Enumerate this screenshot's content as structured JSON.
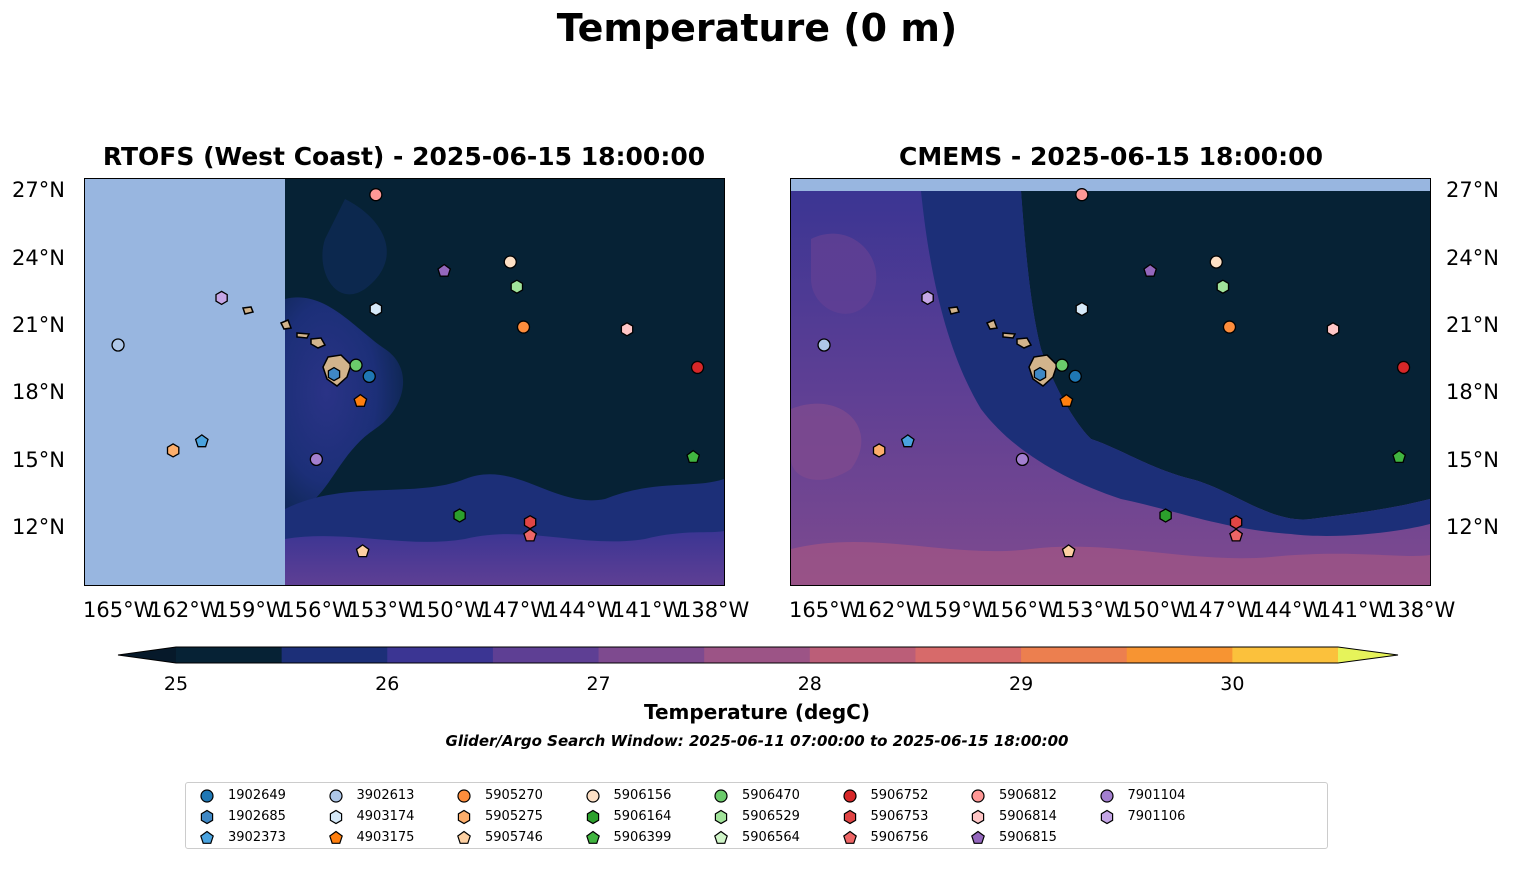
{
  "figure": {
    "title": "Temperature (0 m)",
    "panels": [
      {
        "title": "RTOFS (West Coast) - 2025-06-15 18:00:00"
      },
      {
        "title": "CMEMS - 2025-06-15 18:00:00"
      }
    ],
    "lat_labels": [
      "27°N",
      "24°N",
      "21°N",
      "18°N",
      "15°N",
      "12°N"
    ],
    "lon_labels": [
      "165°W",
      "162°W",
      "159°W",
      "156°W",
      "153°W",
      "150°W",
      "147°W",
      "144°W",
      "141°W",
      "138°W"
    ],
    "colorbar": {
      "label": "Temperature (degC)",
      "ticks": [
        "25",
        "26",
        "27",
        "28",
        "29",
        "30"
      ],
      "colors": [
        "#062235",
        "#1c2f78",
        "#3b3593",
        "#5e3f94",
        "#7e4a8f",
        "#9c5486",
        "#bb5e78",
        "#d76a6a",
        "#ec7f4f",
        "#f79432",
        "#fbc13c"
      ],
      "under_color": "#06192a",
      "over_color": "#e6f35a"
    },
    "search_window": "Glider/Argo Search Window: 2025-06-11 07:00:00 to 2025-06-15 18:00:00"
  },
  "legend": [
    {
      "id": "1902649",
      "marker": "circle",
      "color": "#1f77b4"
    },
    {
      "id": "1902685",
      "marker": "hexagon",
      "color": "#3f88c5"
    },
    {
      "id": "3902373",
      "marker": "pentagon",
      "color": "#4aa3df"
    },
    {
      "id": "3902613",
      "marker": "circle",
      "color": "#aec7e8"
    },
    {
      "id": "4903174",
      "marker": "hexagon",
      "color": "#d6e9f8"
    },
    {
      "id": "4903175",
      "marker": "pentagon",
      "color": "#ff7f0e"
    },
    {
      "id": "5905270",
      "marker": "circle",
      "color": "#fd8d3c"
    },
    {
      "id": "5905275",
      "marker": "hexagon",
      "color": "#fdae6b"
    },
    {
      "id": "5905746",
      "marker": "pentagon",
      "color": "#fdd0a2"
    },
    {
      "id": "5906156",
      "marker": "circle",
      "color": "#fde0c5"
    },
    {
      "id": "5906164",
      "marker": "hexagon",
      "color": "#2ca02c"
    },
    {
      "id": "5906399",
      "marker": "pentagon",
      "color": "#41b540"
    },
    {
      "id": "5906470",
      "marker": "circle",
      "color": "#6bcb6b"
    },
    {
      "id": "5906529",
      "marker": "hexagon",
      "color": "#a1e39a"
    },
    {
      "id": "5906564",
      "marker": "pentagon",
      "color": "#d0f5c8"
    },
    {
      "id": "5906752",
      "marker": "circle",
      "color": "#d62728"
    },
    {
      "id": "5906753",
      "marker": "hexagon",
      "color": "#e04545"
    },
    {
      "id": "5906756",
      "marker": "pentagon",
      "color": "#ee6666"
    },
    {
      "id": "5906812",
      "marker": "circle",
      "color": "#ff9896"
    },
    {
      "id": "5906814",
      "marker": "hexagon",
      "color": "#ffc6c6"
    },
    {
      "id": "5906815",
      "marker": "pentagon",
      "color": "#9467bd"
    },
    {
      "id": "7901104",
      "marker": "circle",
      "color": "#a37fcf"
    },
    {
      "id": "7901106",
      "marker": "hexagon",
      "color": "#c5a6e6"
    }
  ],
  "markers": [
    {
      "id": "5906812",
      "lon": -153.3,
      "lat": 26.9
    },
    {
      "id": "5906815",
      "lon": -150.2,
      "lat": 23.5
    },
    {
      "id": "5906156",
      "lon": -147.2,
      "lat": 23.9
    },
    {
      "id": "5906529",
      "lon": -146.9,
      "lat": 22.8
    },
    {
      "id": "4903174",
      "lon": -153.3,
      "lat": 21.8
    },
    {
      "id": "5905270",
      "lon": -146.6,
      "lat": 21.0
    },
    {
      "id": "5906814",
      "lon": -141.9,
      "lat": 20.9
    },
    {
      "id": "7901106",
      "lon": -160.3,
      "lat": 22.3
    },
    {
      "id": "3902613",
      "lon": -165.0,
      "lat": 20.2
    },
    {
      "id": "5906470",
      "lon": -154.2,
      "lat": 19.3
    },
    {
      "id": "1902685",
      "lon": -155.2,
      "lat": 18.9
    },
    {
      "id": "1902649",
      "lon": -153.6,
      "lat": 18.8
    },
    {
      "id": "4903175",
      "lon": -154.0,
      "lat": 17.7
    },
    {
      "id": "5906752",
      "lon": -138.7,
      "lat": 19.2
    },
    {
      "id": "5905275",
      "lon": -162.5,
      "lat": 15.5
    },
    {
      "id": "3902373",
      "lon": -161.2,
      "lat": 15.9
    },
    {
      "id": "7901104",
      "lon": -156.0,
      "lat": 15.1
    },
    {
      "id": "5906399",
      "lon": -138.9,
      "lat": 15.2
    },
    {
      "id": "5906164",
      "lon": -149.5,
      "lat": 12.6
    },
    {
      "id": "5906753",
      "lon": -146.3,
      "lat": 12.3
    },
    {
      "id": "5906756",
      "lon": -146.3,
      "lat": 11.7
    },
    {
      "id": "5905746",
      "lon": -153.9,
      "lat": 11.0
    }
  ]
}
